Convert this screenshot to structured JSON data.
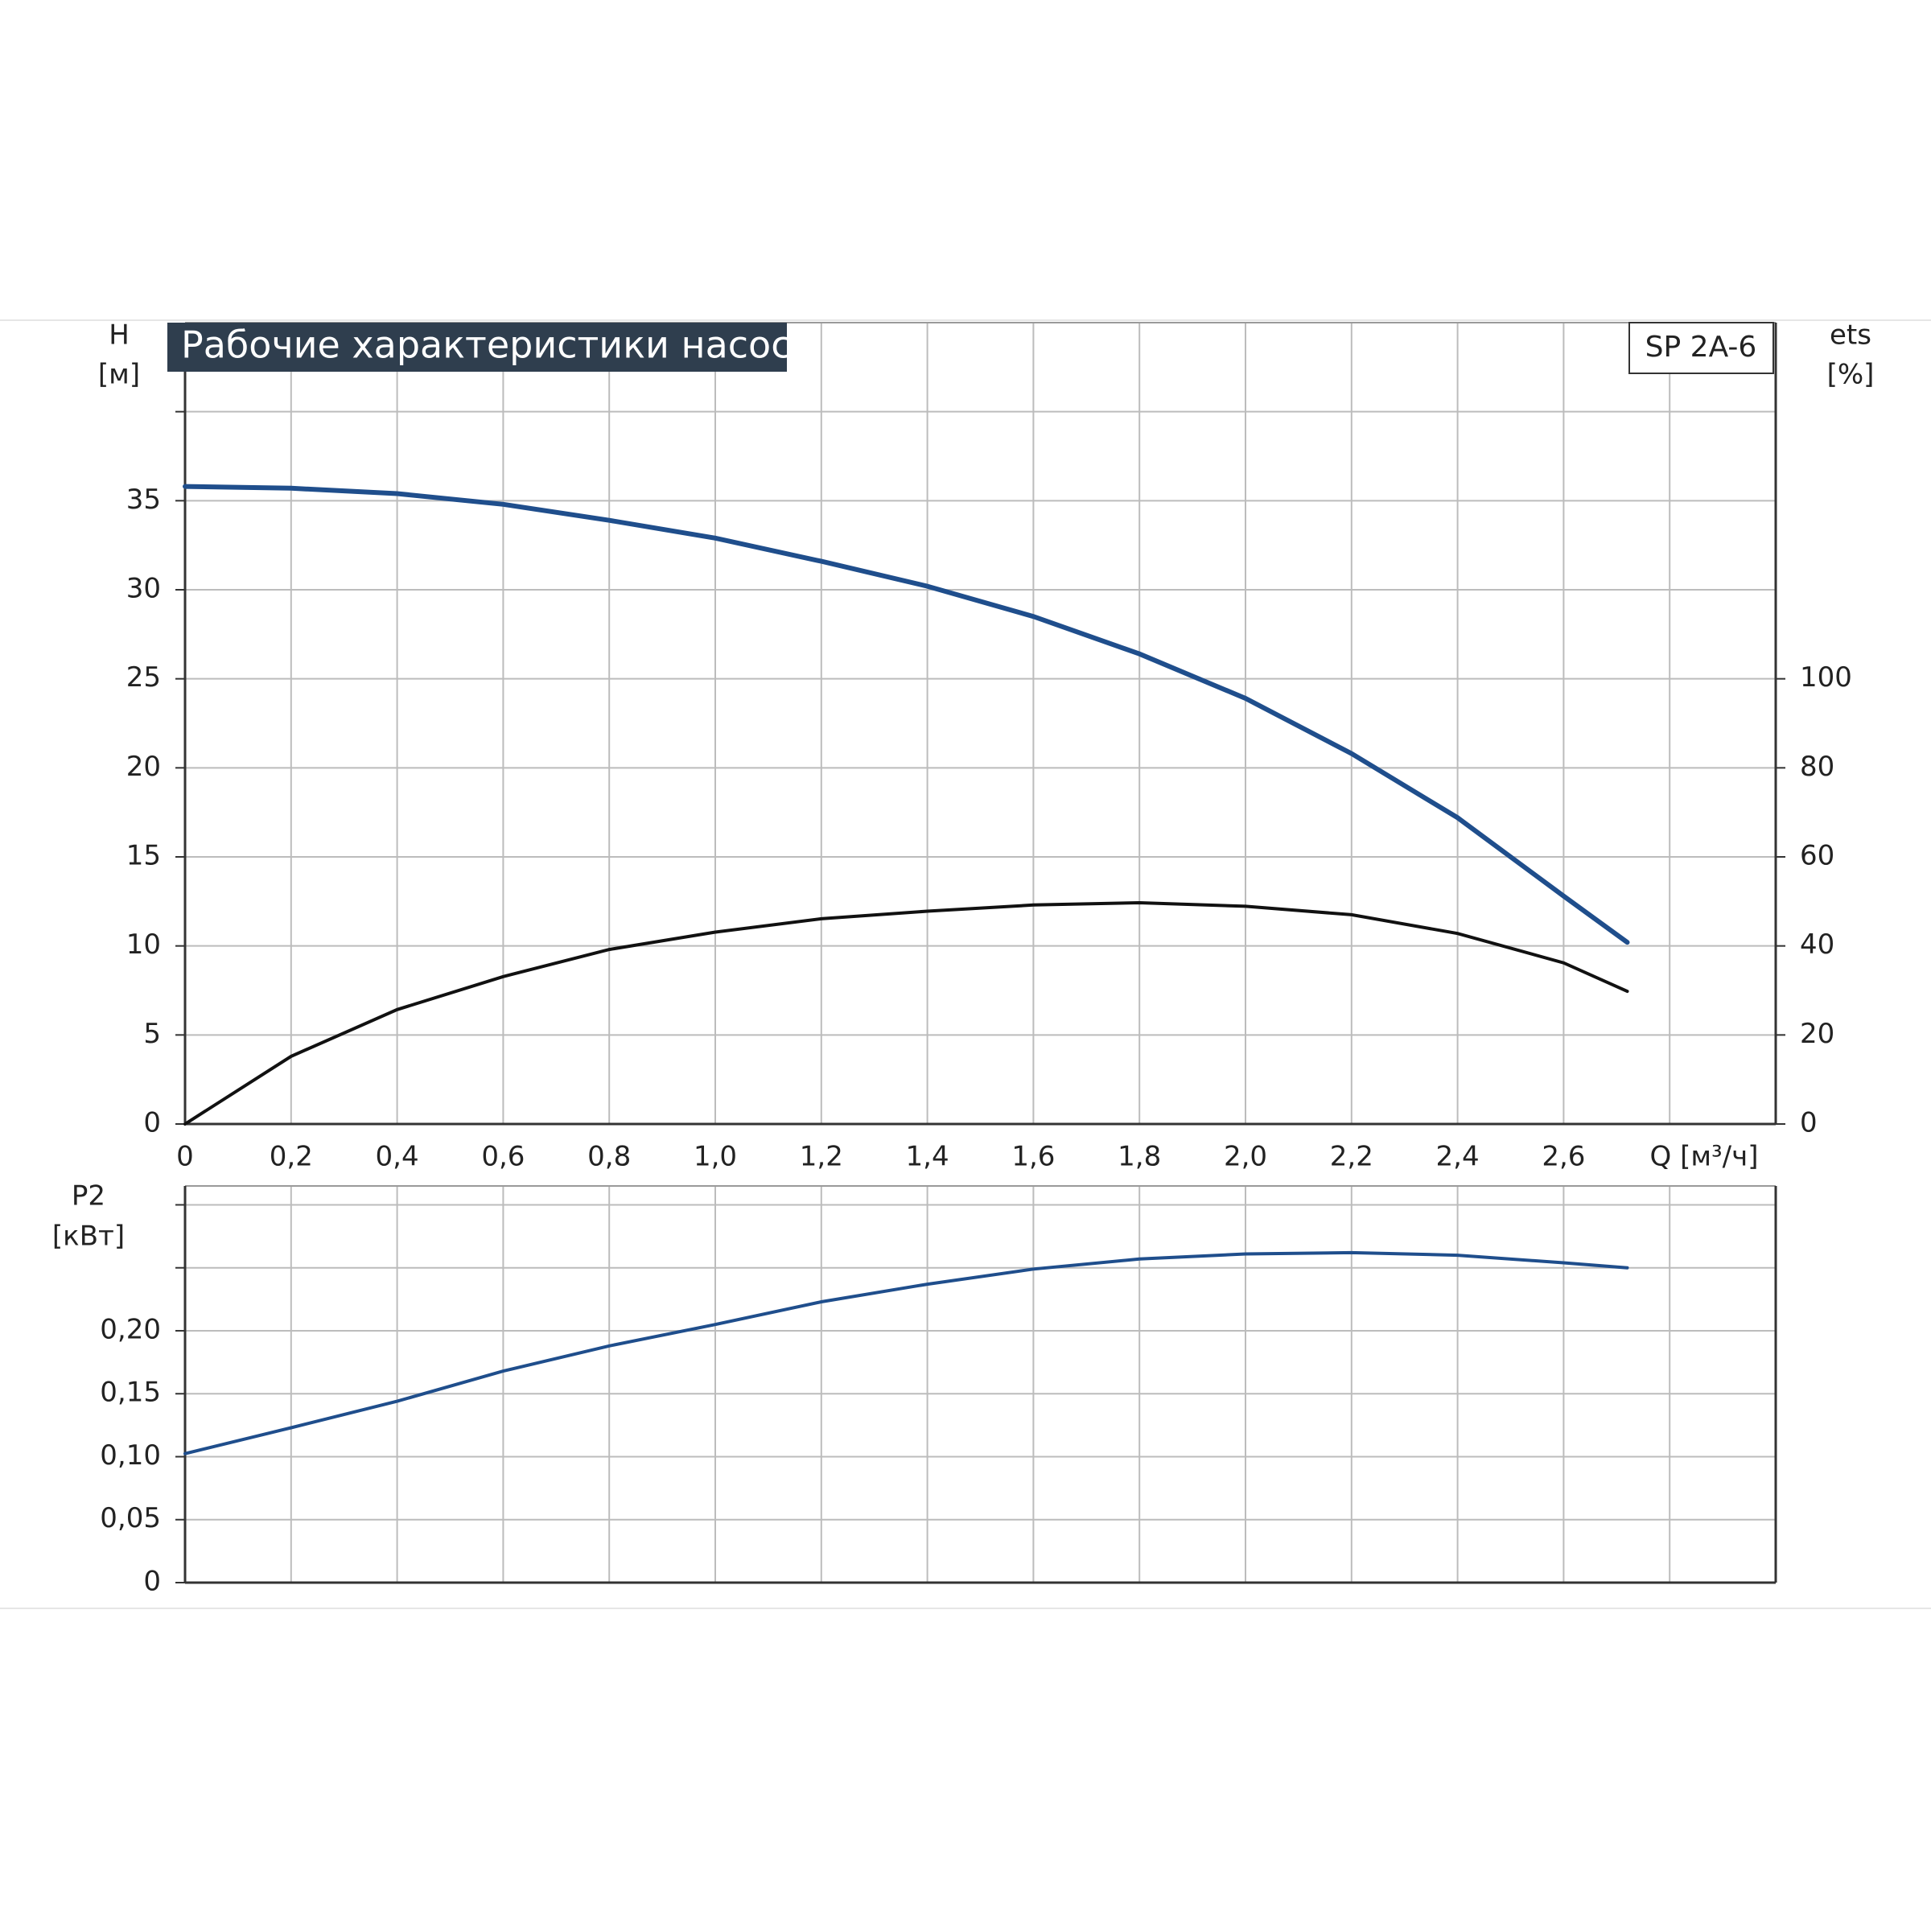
{
  "chart_data": [
    {
      "type": "line",
      "title": "Рабочие характеристики насоса",
      "model": "SP 2A-6",
      "ylabel": "H",
      "yunit": "[м]",
      "y2label": "ets",
      "y2unit": "[%]",
      "xlabel": "Q [м³/ч]",
      "x": [
        0,
        0.2,
        0.4,
        0.6,
        0.8,
        1.0,
        1.2,
        1.4,
        1.6,
        1.8,
        2.0,
        2.2,
        2.4,
        2.6,
        2.72
      ],
      "xlim": [
        0,
        3.0
      ],
      "xticks": [
        0,
        {
          "value": 0.2,
          "label": "0,2"
        },
        {
          "value": 0.4,
          "label": "0,4"
        },
        {
          "value": 0.6,
          "label": "0,6"
        },
        {
          "value": 0.8,
          "label": "0,8"
        },
        {
          "value": 1.0,
          "label": "1,0"
        },
        {
          "value": 1.2,
          "label": "1,2"
        },
        {
          "value": 1.4,
          "label": "1,4"
        },
        {
          "value": 1.6,
          "label": "1,6"
        },
        {
          "value": 1.8,
          "label": "1,8"
        },
        {
          "value": 2.0,
          "label": "2,0"
        },
        {
          "value": 2.2,
          "label": "2,2"
        },
        {
          "value": 2.4,
          "label": "2,4"
        },
        {
          "value": 2.6,
          "label": "2,6"
        },
        {
          "value": 2.8,
          "label": null
        },
        {
          "value": 3.0,
          "label": null
        }
      ],
      "ylim": [
        0,
        45
      ],
      "yticks": [
        0,
        5,
        10,
        15,
        20,
        25,
        30,
        35,
        {
          "value": 40,
          "label": null
        }
      ],
      "y2lim": [
        0,
        180
      ],
      "y2ticks": [
        0,
        20,
        40,
        60,
        80,
        100
      ],
      "grid": true,
      "series": [
        {
          "color": "#1f4e8c",
          "values": [
            35.8,
            35.7,
            35.4,
            34.8,
            33.9,
            32.9,
            31.6,
            30.2,
            28.5,
            26.4,
            23.9,
            20.8,
            17.2,
            12.8,
            10.2
          ]
        },
        {
          "color": "#111111",
          "axis": "y2",
          "values": [
            0,
            15.2,
            25.7,
            33.1,
            39.2,
            43.1,
            46.1,
            47.8,
            49.2,
            49.7,
            48.9,
            47.0,
            42.8,
            36.2,
            29.8
          ]
        }
      ]
    },
    {
      "type": "line",
      "ylabel": "P2",
      "yunit": "[кВт]",
      "x": [
        0,
        0.2,
        0.4,
        0.6,
        0.8,
        1.0,
        1.2,
        1.4,
        1.6,
        1.8,
        2.0,
        2.2,
        2.4,
        2.6,
        2.72
      ],
      "xlim": [
        0,
        3.0
      ],
      "xticks": [
        {
          "value": 0,
          "label": null
        },
        {
          "value": 0.2,
          "label": null
        },
        {
          "value": 0.4,
          "label": null
        },
        {
          "value": 0.6,
          "label": null
        },
        {
          "value": 0.8,
          "label": null
        },
        {
          "value": 1.0,
          "label": null
        },
        {
          "value": 1.2,
          "label": null
        },
        {
          "value": 1.4,
          "label": null
        },
        {
          "value": 1.6,
          "label": null
        },
        {
          "value": 1.8,
          "label": null
        },
        {
          "value": 2.0,
          "label": null
        },
        {
          "value": 2.2,
          "label": null
        },
        {
          "value": 2.4,
          "label": null
        },
        {
          "value": 2.6,
          "label": null
        },
        {
          "value": 2.8,
          "label": null
        },
        {
          "value": 3.0,
          "label": null
        }
      ],
      "ylim": [
        0,
        0.315
      ],
      "yticks": [
        0,
        {
          "value": 0.05,
          "label": "0,05"
        },
        {
          "value": 0.1,
          "label": "0,10"
        },
        {
          "value": 0.15,
          "label": "0,15"
        },
        {
          "value": 0.2,
          "label": "0,20"
        },
        {
          "value": 0.25,
          "label": null
        },
        {
          "value": 0.3,
          "label": null
        }
      ],
      "grid": true,
      "series": [
        {
          "color": "#1f4e8c",
          "values": [
            0.1024,
            0.123,
            0.144,
            0.168,
            0.188,
            0.205,
            0.223,
            0.237,
            0.249,
            0.257,
            0.261,
            0.262,
            0.26,
            0.254,
            0.25
          ]
        }
      ]
    }
  ]
}
